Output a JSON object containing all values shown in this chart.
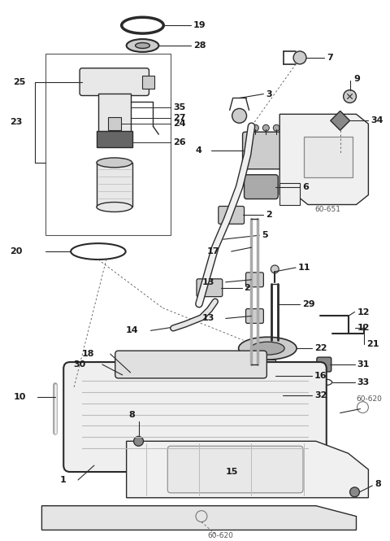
{
  "bg_color": "#ffffff",
  "lc": "#2a2a2a",
  "gray": "#888888",
  "lgray": "#cccccc",
  "llgray": "#e8e8e8",
  "fig_w": 4.8,
  "fig_h": 6.65,
  "dpi": 100
}
